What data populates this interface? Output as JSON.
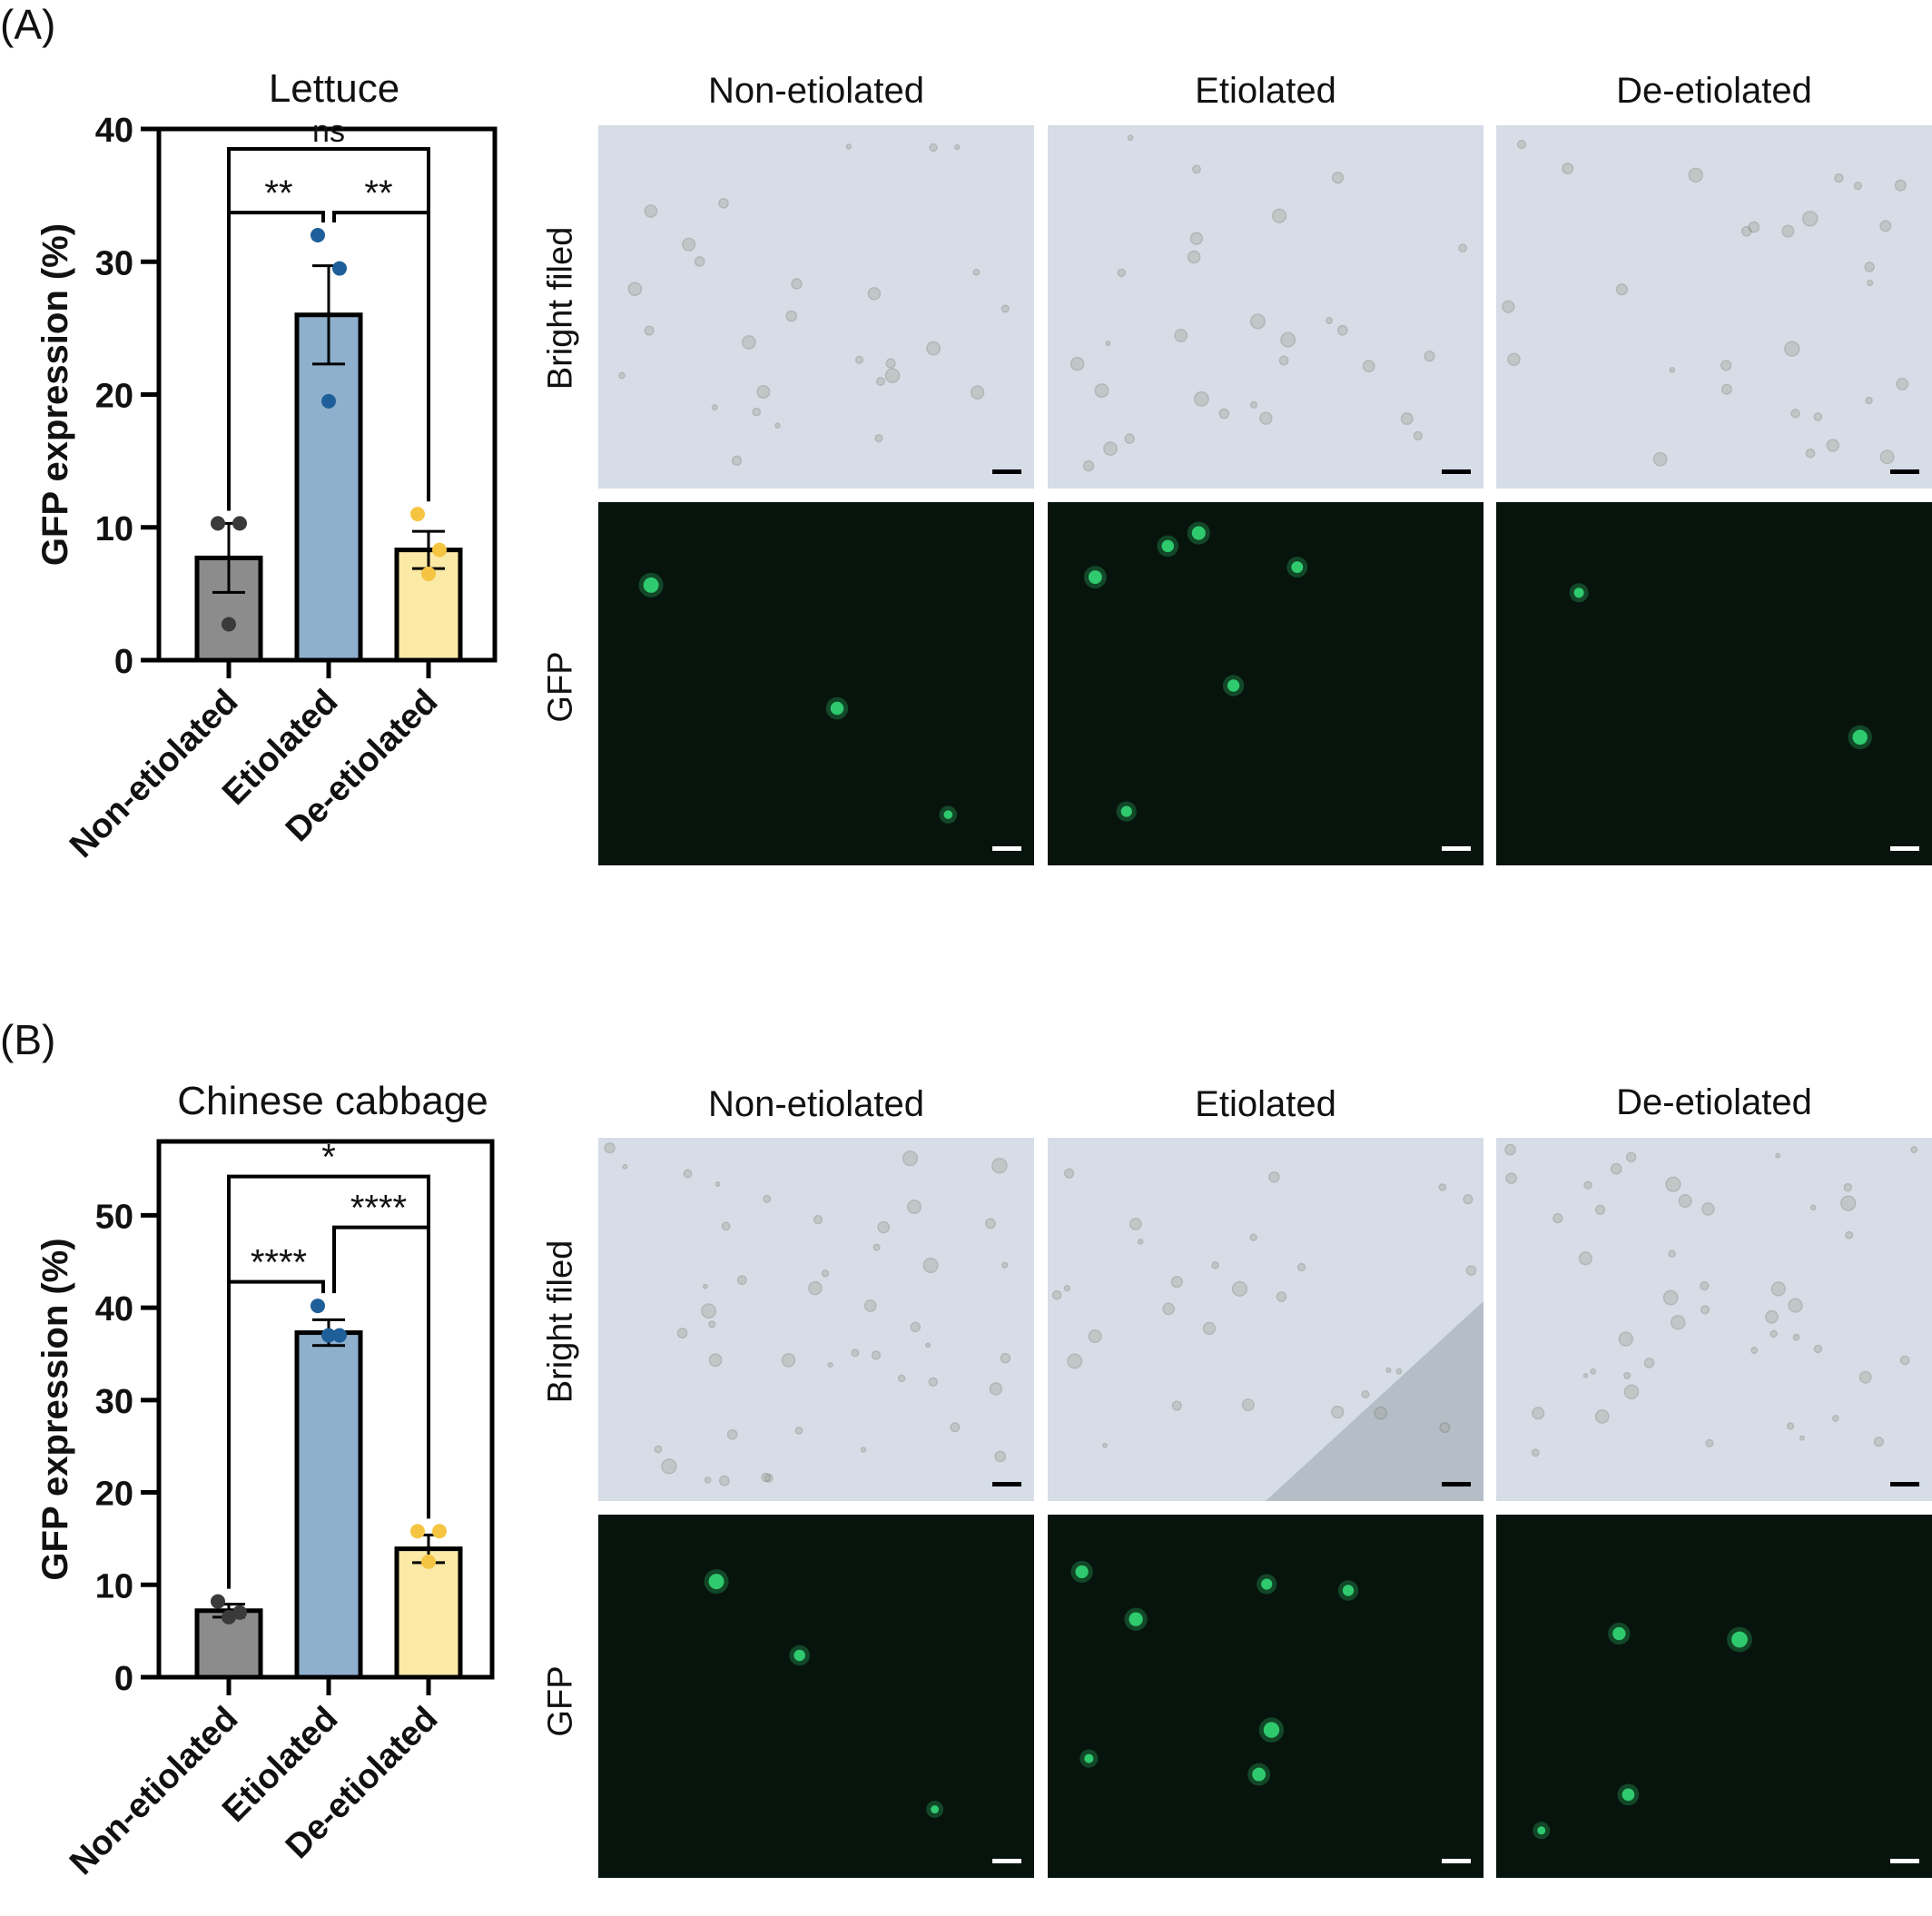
{
  "panels": [
    {
      "label": "(A)",
      "chart_data": {
        "type": "bar",
        "title": "Lettuce",
        "ylabel": "GFP expression (%)",
        "ylim": [
          0,
          40
        ],
        "yticks": [
          0,
          10,
          20,
          30,
          40
        ],
        "categories": [
          "Non-etiolated",
          "Etiolated",
          "De-etiolated"
        ],
        "values": [
          7.7,
          26.0,
          8.3
        ],
        "sem": [
          2.6,
          3.7,
          1.4
        ],
        "points": [
          [
            10.3,
            10.3,
            2.7
          ],
          [
            32.0,
            29.5,
            19.5
          ],
          [
            11.0,
            8.3,
            6.5
          ]
        ],
        "colors": [
          "#8c8c8c",
          "#8fb0cd",
          "#fbe9a6"
        ],
        "point_colors": [
          "#3a3a3a",
          "#1f5f99",
          "#f5c542"
        ],
        "comparisons": [
          {
            "from": 0,
            "to": 2,
            "label": "ns",
            "level": 38.5
          },
          {
            "from": 0,
            "to": 1,
            "label": "**",
            "level": 33.7
          },
          {
            "from": 1,
            "to": 2,
            "label": "**",
            "level": 33.7
          }
        ]
      },
      "columns": [
        "Non-etiolated",
        "Etiolated",
        "De-etiolated"
      ],
      "rows": [
        "Bright filed",
        "GFP"
      ]
    },
    {
      "label": "(B)",
      "chart_data": {
        "type": "bar",
        "title": "Chinese cabbage",
        "ylabel": "GFP expression (%)",
        "ylim": [
          0,
          58
        ],
        "yticks": [
          0,
          10,
          20,
          30,
          40,
          50
        ],
        "categories": [
          "Non-etiolated",
          "Etiolated",
          "De-etiolated"
        ],
        "values": [
          7.2,
          37.3,
          13.9
        ],
        "sem": [
          0.7,
          1.4,
          1.5
        ],
        "points": [
          [
            8.2,
            7.0,
            6.5
          ],
          [
            40.2,
            37.0,
            37.0
          ],
          [
            15.8,
            15.8,
            12.5
          ]
        ],
        "colors": [
          "#8c8c8c",
          "#8fb0cd",
          "#fbe9a6"
        ],
        "point_colors": [
          "#3a3a3a",
          "#1f5f99",
          "#f5c542"
        ],
        "comparisons": [
          {
            "from": 0,
            "to": 2,
            "label": "*",
            "level": 54.2
          },
          {
            "from": 1,
            "to": 2,
            "label": "****",
            "level": 48.7
          },
          {
            "from": 0,
            "to": 1,
            "label": "****",
            "level": 42.8
          }
        ]
      },
      "columns": [
        "Non-etiolated",
        "Etiolated",
        "De-etiolated"
      ],
      "rows": [
        "Bright filed",
        "GFP"
      ]
    }
  ],
  "colors": {
    "bright_field_bg": "#d6dde6",
    "gfp_bg": "#07140d",
    "cell_outline": "#6b7363",
    "gfp_cell": "#35e07a"
  }
}
